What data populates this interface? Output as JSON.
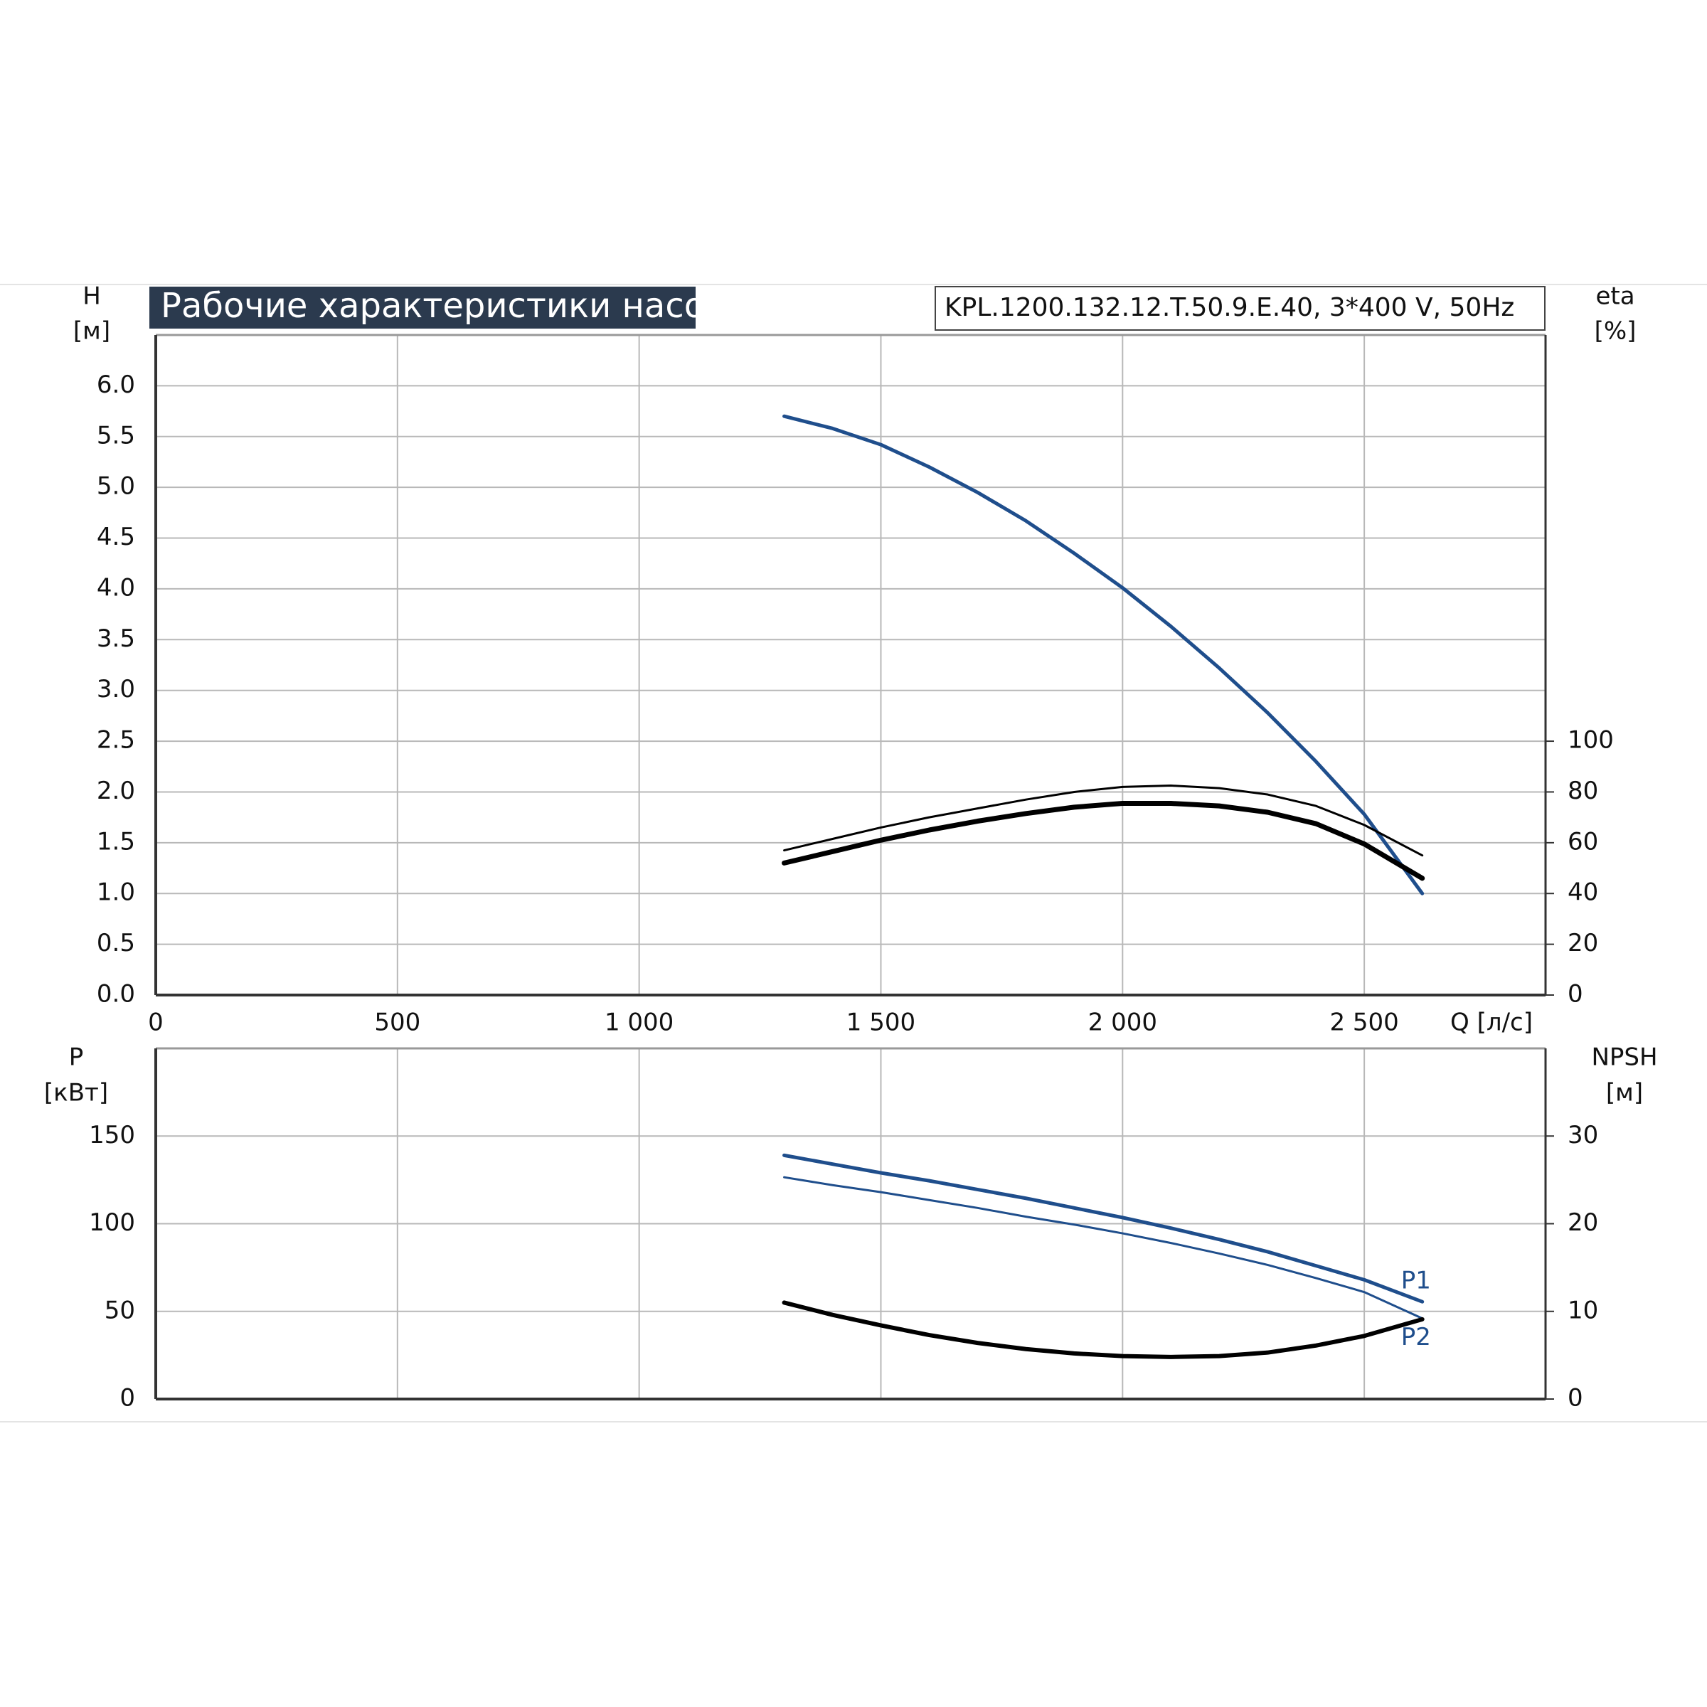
{
  "chart_data": [
    {
      "type": "line",
      "title": "Рабочие характеристики насоса",
      "subtitle": "KPL.1200.132.12.T.50.9.E.40, 3*400 V, 50Hz",
      "xlabel": "Q [л/с]",
      "ylabel": "H",
      "yunit": "[м]",
      "y2label": "eta",
      "y2unit": "[%]",
      "xlim": [
        0,
        2875
      ],
      "xticks": [
        0,
        500,
        {
          "value": 1000,
          "label": "1 000"
        },
        {
          "value": 1500,
          "label": "1 500"
        },
        {
          "value": 2000,
          "label": "2 000"
        },
        {
          "value": 2500,
          "label": "2 500"
        }
      ],
      "ylim": [
        0,
        6.5
      ],
      "yticks": [
        {
          "value": 0,
          "label": "0.0"
        },
        0.5,
        {
          "value": 1,
          "label": "1.0"
        },
        1.5,
        {
          "value": 2,
          "label": "2.0"
        },
        2.5,
        {
          "value": 3,
          "label": "3.0"
        },
        3.5,
        {
          "value": 4,
          "label": "4.0"
        },
        4.5,
        {
          "value": 5,
          "label": "5.0"
        },
        5.5,
        {
          "value": 6,
          "label": "6.0"
        }
      ],
      "y2lim": [
        0,
        260
      ],
      "y2ticks": [
        0,
        20,
        40,
        60,
        80,
        100
      ],
      "grid": true,
      "x": [
        1300,
        1400,
        1500,
        1600,
        1700,
        1800,
        1900,
        2000,
        2100,
        2200,
        2300,
        2400,
        2500,
        2620
      ],
      "series": [
        {
          "color": "#1f4e8c",
          "values": [
            5.7,
            5.58,
            5.42,
            5.2,
            4.95,
            4.67,
            4.35,
            4.01,
            3.63,
            3.22,
            2.78,
            2.3,
            1.78,
            1.0
          ]
        },
        {
          "color": "#000000",
          "axis": "y2",
          "values": [
            57,
            61.5,
            66,
            70,
            73.5,
            77,
            80,
            82,
            82.5,
            81.5,
            79,
            74.5,
            67,
            55
          ]
        },
        {
          "color": "#000000",
          "axis": "y2",
          "values": [
            52,
            56.5,
            61,
            65,
            68.5,
            71.5,
            74,
            75.5,
            75.5,
            74.5,
            72,
            67.5,
            59.5,
            46
          ]
        }
      ]
    },
    {
      "type": "line",
      "ylabel": "P",
      "yunit": "[кВт]",
      "y2label": "NPSH",
      "y2unit": "[м]",
      "xlim": [
        0,
        2875
      ],
      "xticks": [
        0,
        500,
        1000,
        1500,
        2000,
        2500
      ],
      "ylim": [
        0,
        200
      ],
      "yticks": [
        0,
        50,
        100,
        150
      ],
      "y2lim": [
        0,
        40
      ],
      "y2ticks": [
        0,
        10,
        20,
        30
      ],
      "grid": true,
      "x": [
        1300,
        1400,
        1500,
        1600,
        1700,
        1800,
        1900,
        2000,
        2100,
        2200,
        2300,
        2400,
        2500,
        2620
      ],
      "series": [
        {
          "name": "P1",
          "color": "#1f4e8c",
          "values": [
            139,
            134,
            129,
            124.5,
            119.5,
            114.5,
            109,
            103.5,
            97.5,
            91,
            84,
            76,
            68,
            55.5
          ]
        },
        {
          "name": "P2",
          "color": "#1f4e8c",
          "values": [
            126.5,
            122,
            118,
            113.5,
            109,
            104,
            99.5,
            94.5,
            89,
            83,
            76.5,
            69,
            61,
            46
          ]
        },
        {
          "color": "#000000",
          "axis": "y2",
          "values": [
            11.0,
            9.6,
            8.4,
            7.3,
            6.4,
            5.7,
            5.2,
            4.9,
            4.8,
            4.9,
            5.3,
            6.1,
            7.2,
            9.1
          ]
        }
      ]
    }
  ]
}
